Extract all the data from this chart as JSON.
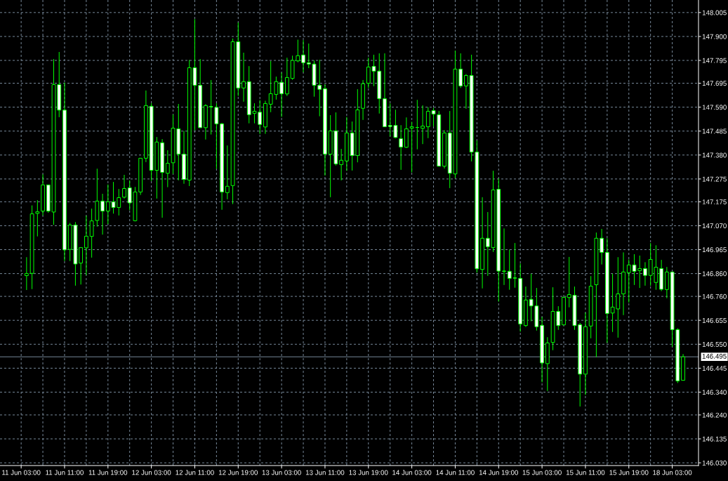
{
  "chart_data": {
    "type": "candlestick",
    "categories": [
      "11 Jun 03:00",
      null,
      null,
      null,
      null,
      null,
      null,
      null,
      "11 Jun 11:00",
      null,
      null,
      null,
      null,
      null,
      null,
      null,
      "11 Jun 19:00",
      null,
      null,
      null,
      null,
      null,
      null,
      null,
      "12 Jun 03:00",
      null,
      null,
      null,
      null,
      null,
      null,
      null,
      "12 Jun 11:00",
      null,
      null,
      null,
      null,
      null,
      null,
      null,
      "12 Jun 19:00",
      null,
      null,
      null,
      null,
      null,
      null,
      null,
      "13 Jun 03:00",
      null,
      null,
      null,
      null,
      null,
      null,
      null,
      "13 Jun 11:00",
      null,
      null,
      null,
      null,
      null,
      null,
      null,
      "13 Jun 19:00",
      null,
      null,
      null,
      null,
      null,
      null,
      null,
      "14 Jun 03:00",
      null,
      null,
      null,
      null,
      null,
      null,
      null,
      "14 Jun 11:00",
      null,
      null,
      null,
      null,
      null,
      null,
      null,
      "14 Jun 19:00",
      null,
      null,
      null,
      null,
      null,
      null,
      null,
      "15 Jun 03:00",
      null,
      null,
      null,
      null,
      null,
      null,
      null,
      "15 Jun 11:00",
      null,
      null,
      null,
      null,
      null,
      null,
      null,
      "15 Jun 19:00",
      null,
      null,
      null,
      null,
      null,
      null,
      null,
      "18 Jun 03:00",
      null,
      null
    ],
    "ohlc": [
      null,
      [
        146.851,
        146.932,
        146.788,
        146.86
      ],
      [
        146.861,
        147.159,
        146.792,
        147.122
      ],
      [
        147.124,
        147.182,
        147.023,
        147.131
      ],
      [
        147.134,
        147.295,
        147.115,
        147.249
      ],
      [
        147.249,
        147.25,
        147.127,
        147.134
      ],
      [
        147.13,
        147.801,
        147.074,
        147.689
      ],
      [
        147.689,
        147.832,
        147.546,
        147.577
      ],
      [
        147.577,
        147.698,
        146.915,
        146.964
      ],
      [
        146.966,
        147.082,
        146.915,
        147.073
      ],
      [
        147.073,
        147.086,
        146.807,
        146.902
      ],
      [
        146.906,
        146.974,
        146.812,
        146.974
      ],
      [
        146.973,
        147.114,
        146.853,
        147.024
      ],
      [
        147.023,
        147.145,
        146.93,
        147.091
      ],
      [
        147.093,
        147.32,
        147.066,
        147.178
      ],
      [
        147.178,
        147.21,
        147.031,
        147.134
      ],
      [
        147.134,
        147.251,
        147.077,
        147.175
      ],
      [
        147.175,
        147.262,
        147.123,
        147.15
      ],
      [
        147.15,
        147.231,
        147.115,
        147.193
      ],
      [
        147.195,
        147.293,
        147.189,
        147.233
      ],
      [
        147.236,
        147.269,
        147.138,
        147.17
      ],
      [
        147.092,
        147.24,
        147.089,
        147.218
      ],
      [
        147.218,
        147.366,
        147.205,
        147.366
      ],
      [
        147.366,
        147.663,
        147.349,
        147.597
      ],
      [
        147.594,
        147.607,
        147.266,
        147.313
      ],
      [
        147.313,
        147.459,
        147.189,
        147.437
      ],
      [
        147.434,
        147.45,
        147.105,
        147.304
      ],
      [
        147.3,
        147.401,
        147.239,
        147.344
      ],
      [
        147.346,
        147.558,
        147.297,
        147.498
      ],
      [
        147.495,
        147.604,
        147.269,
        147.384
      ],
      [
        147.384,
        147.486,
        147.254,
        147.273
      ],
      [
        147.27,
        147.797,
        147.244,
        147.763
      ],
      [
        147.763,
        147.976,
        147.488,
        147.686
      ],
      [
        147.686,
        147.801,
        147.5,
        147.5
      ],
      [
        147.5,
        147.603,
        147.448,
        147.597
      ],
      [
        147.593,
        147.709,
        147.47,
        147.591
      ],
      [
        147.589,
        147.607,
        147.319,
        147.517
      ],
      [
        147.517,
        147.521,
        147.14,
        147.218
      ],
      [
        147.215,
        147.422,
        147.186,
        147.243
      ],
      [
        147.246,
        147.891,
        147.165,
        147.877
      ],
      [
        147.877,
        147.961,
        147.639,
        147.674
      ],
      [
        147.674,
        147.829,
        147.614,
        147.702
      ],
      [
        147.702,
        147.77,
        147.519,
        147.557
      ],
      [
        147.563,
        147.607,
        147.519,
        147.572
      ],
      [
        147.568,
        147.621,
        147.472,
        147.514
      ],
      [
        147.503,
        147.618,
        147.473,
        147.606
      ],
      [
        147.603,
        147.792,
        147.568,
        147.649
      ],
      [
        147.646,
        147.724,
        147.623,
        147.702
      ],
      [
        147.699,
        147.742,
        147.547,
        147.649
      ],
      [
        147.648,
        147.807,
        147.639,
        147.72
      ],
      [
        147.716,
        147.816,
        147.71,
        147.795
      ],
      [
        147.793,
        147.886,
        147.787,
        147.816
      ],
      [
        147.819,
        147.884,
        147.743,
        147.785
      ],
      [
        147.785,
        147.869,
        147.761,
        147.779
      ],
      [
        147.779,
        147.795,
        147.636,
        147.686
      ],
      [
        147.686,
        147.798,
        147.55,
        147.668
      ],
      [
        147.671,
        147.69,
        147.29,
        147.384
      ],
      [
        147.384,
        147.555,
        147.195,
        147.486
      ],
      [
        147.486,
        147.567,
        147.334,
        147.341
      ],
      [
        147.338,
        147.407,
        147.269,
        147.357
      ],
      [
        147.354,
        147.547,
        147.311,
        147.477
      ],
      [
        147.477,
        147.527,
        147.312,
        147.378
      ],
      [
        147.378,
        147.669,
        147.348,
        147.578
      ],
      [
        147.585,
        147.709,
        147.534,
        147.693
      ],
      [
        147.695,
        147.807,
        147.674,
        147.766
      ],
      [
        147.769,
        147.82,
        147.682,
        147.748
      ],
      [
        147.748,
        147.826,
        147.562,
        147.627
      ],
      [
        147.627,
        147.826,
        147.504,
        147.504
      ],
      [
        147.51,
        147.606,
        147.462,
        147.505
      ],
      [
        147.51,
        147.579,
        147.454,
        147.457
      ],
      [
        147.452,
        147.511,
        147.315,
        147.415
      ],
      [
        147.414,
        147.545,
        147.411,
        147.495
      ],
      [
        147.498,
        147.526,
        147.304,
        147.504
      ],
      [
        147.501,
        147.622,
        147.405,
        147.501
      ],
      [
        147.497,
        147.598,
        147.428,
        147.507
      ],
      [
        147.504,
        147.59,
        147.454,
        147.572
      ],
      [
        147.575,
        147.587,
        147.506,
        147.56
      ],
      [
        147.557,
        147.573,
        147.331,
        147.331
      ],
      [
        147.331,
        147.489,
        147.321,
        147.477
      ],
      [
        147.477,
        147.573,
        147.235,
        147.3
      ],
      [
        147.297,
        147.838,
        147.279,
        147.757
      ],
      [
        147.757,
        147.826,
        147.674,
        147.683
      ],
      [
        147.683,
        147.735,
        147.583,
        147.729
      ],
      [
        147.729,
        147.82,
        147.352,
        147.393
      ],
      [
        147.393,
        147.444,
        146.864,
        146.881
      ],
      [
        146.878,
        147.195,
        146.795,
        147.015
      ],
      [
        147.015,
        147.13,
        146.85,
        146.978
      ],
      [
        146.974,
        147.311,
        146.955,
        147.227
      ],
      [
        147.23,
        147.277,
        146.737,
        146.871
      ],
      [
        146.871,
        147.058,
        146.81,
        146.87
      ],
      [
        146.87,
        146.965,
        146.789,
        146.839
      ],
      [
        146.841,
        146.994,
        146.798,
        146.84
      ],
      [
        146.839,
        146.904,
        146.605,
        146.639
      ],
      [
        146.632,
        146.803,
        146.626,
        146.744
      ],
      [
        146.747,
        146.859,
        146.651,
        146.718
      ],
      [
        146.718,
        146.797,
        146.61,
        146.627
      ],
      [
        146.633,
        146.67,
        146.383,
        146.468
      ],
      [
        146.465,
        146.581,
        146.345,
        146.556
      ],
      [
        146.558,
        146.8,
        146.524,
        146.694
      ],
      [
        146.694,
        146.717,
        146.613,
        146.632
      ],
      [
        146.635,
        146.758,
        146.635,
        146.756
      ],
      [
        146.755,
        146.933,
        146.712,
        146.768
      ],
      [
        146.765,
        146.803,
        146.613,
        146.632
      ],
      [
        146.636,
        146.643,
        146.277,
        146.419
      ],
      [
        146.419,
        146.689,
        146.328,
        146.627
      ],
      [
        146.63,
        146.849,
        146.576,
        146.805
      ],
      [
        146.811,
        147.04,
        146.494,
        147.015
      ],
      [
        147.015,
        147.056,
        146.9,
        146.953
      ],
      [
        146.953,
        147.015,
        146.556,
        146.685
      ],
      [
        146.687,
        146.859,
        146.604,
        146.713
      ],
      [
        146.705,
        146.932,
        146.579,
        146.771
      ],
      [
        146.771,
        146.953,
        146.678,
        146.867
      ],
      [
        146.864,
        146.922,
        146.733,
        146.898
      ],
      [
        146.898,
        146.945,
        146.81,
        146.87
      ],
      [
        146.873,
        146.939,
        146.797,
        146.882
      ],
      [
        146.882,
        146.91,
        146.807,
        146.852
      ],
      [
        146.852,
        146.994,
        146.806,
        146.922
      ],
      [
        146.821,
        146.984,
        146.789,
        146.888
      ],
      [
        146.882,
        146.92,
        146.783,
        146.791
      ],
      [
        146.79,
        146.889,
        146.752,
        146.867
      ],
      [
        146.867,
        146.868,
        146.539,
        146.614
      ],
      [
        146.614,
        146.62,
        146.38,
        146.389
      ],
      [
        146.392,
        146.507,
        146.392,
        146.495
      ]
    ],
    "color": "#00ff00",
    "colors": [
      null,
      "#000000",
      "#000000",
      "#000000",
      "#000000",
      "#ffffff",
      "#000000",
      "#ffffff",
      "#ffffff",
      "#000000",
      "#ffffff",
      "#000000",
      "#000000",
      "#000000",
      "#000000",
      "#ffffff",
      "#000000",
      "#ffffff",
      "#000000",
      "#000000",
      "#ffffff",
      "#000000",
      "#000000",
      "#000000",
      "#ffffff",
      "#000000",
      "#ffffff",
      "#000000",
      "#000000",
      "#ffffff",
      "#ffffff",
      "#000000",
      "#ffffff",
      "#ffffff",
      "#000000",
      "#ffffff",
      "#ffffff",
      "#ffffff",
      "#000000",
      "#000000",
      "#ffffff",
      "#000000",
      "#ffffff",
      "#000000",
      "#ffffff",
      "#000000",
      "#000000",
      "#000000",
      "#ffffff",
      "#000000",
      "#000000",
      "#000000",
      "#ffffff",
      "#ffffff",
      "#ffffff",
      "#ffffff",
      "#ffffff",
      "#000000",
      "#ffffff",
      "#000000",
      "#000000",
      "#ffffff",
      "#000000",
      "#000000",
      "#000000",
      "#ffffff",
      "#ffffff",
      "#ffffff",
      "#ffffff",
      "#ffffff",
      "#ffffff",
      "#000000",
      "#000000",
      "#00ff00",
      "#000000",
      "#000000",
      "#ffffff",
      "#ffffff",
      "#000000",
      "#ffffff",
      "#000000",
      "#ffffff",
      "#000000",
      "#ffffff",
      "#ffffff",
      "#000000",
      "#ffffff",
      "#000000",
      "#ffffff",
      "#ffffff",
      "#ffffff",
      "#ffffff",
      "#ffffff",
      "#000000",
      "#ffffff",
      "#ffffff",
      "#ffffff",
      "#000000",
      "#000000",
      "#ffffff",
      "#000000",
      "#000000",
      "#ffffff",
      "#ffffff",
      "#000000",
      "#000000",
      "#000000",
      "#ffffff",
      "#ffffff",
      "#000000",
      "#000000",
      "#000000",
      "#000000",
      "#ffffff",
      "#000000",
      "#ffffff",
      "#000000",
      "#000000",
      "#ffffff",
      "#000000",
      "#ffffff",
      "#ffffff",
      "#000000"
    ],
    "ylim": [
      146.018,
      148.06
    ],
    "yticks": [
      148.005,
      {
        "value": 147.9,
        "label": "147.900"
      },
      147.795,
      147.695,
      {
        "value": 147.59,
        "label": "147.590"
      },
      147.485,
      {
        "value": 147.38,
        "label": "147.380"
      },
      147.275,
      147.175,
      {
        "value": 147.07,
        "label": "147.070"
      },
      146.965,
      {
        "value": 146.86,
        "label": "146.860"
      },
      {
        "value": 146.76,
        "label": "146.760"
      },
      146.655,
      {
        "value": 146.55,
        "label": "146.550"
      },
      146.445,
      {
        "value": 146.34,
        "label": "146.340"
      },
      {
        "value": 146.24,
        "label": "146.240"
      },
      146.135,
      {
        "value": 146.03,
        "label": "146.030"
      }
    ],
    "grid": true,
    "ref_lines": [
      {
        "axis": "y",
        "value": 146.495,
        "label": "146.495",
        "color": "#778899"
      }
    ]
  }
}
